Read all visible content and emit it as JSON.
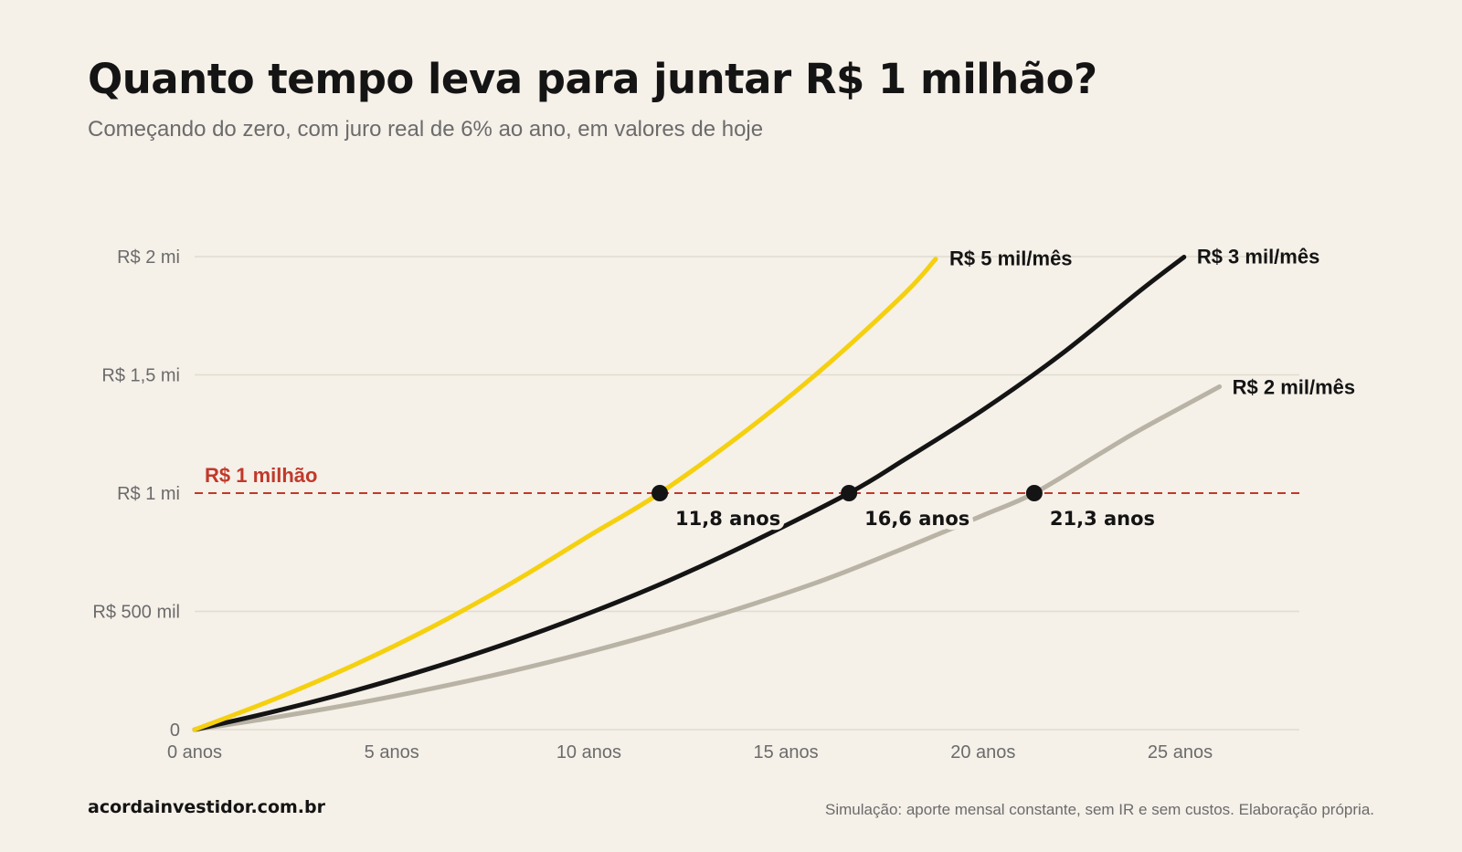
{
  "header": {
    "title": "Quanto tempo leva para juntar R$ 1 milhão?",
    "subtitle": "Começando do zero, com juro real de 6% ao ano, em valores de hoje"
  },
  "footer": {
    "source": "acordainvestidor.com.br",
    "note": "Simulação: aporte mensal constante, sem IR e sem custos. Elaboração própria."
  },
  "colors": {
    "background": "#f5f0e8",
    "grid": "#e2dccf",
    "reference_line": "#c0392b"
  },
  "chart_data": {
    "type": "line",
    "title": "Quanto tempo leva para juntar R$ 1 milhão?",
    "subtitle": "Começando do zero, com juro real de 6% ao ano, em valores de hoje",
    "xlabel": "",
    "ylabel": "",
    "xlim": [
      0,
      28
    ],
    "ylim": [
      0,
      2000000
    ],
    "grid": true,
    "x_ticks": [
      {
        "value": 0,
        "label": "0 anos"
      },
      {
        "value": 5,
        "label": "5 anos"
      },
      {
        "value": 10,
        "label": "10 anos"
      },
      {
        "value": 15,
        "label": "15 anos"
      },
      {
        "value": 20,
        "label": "20 anos"
      },
      {
        "value": 25,
        "label": "25 anos"
      }
    ],
    "y_ticks": [
      {
        "value": 0,
        "label": "0"
      },
      {
        "value": 500000,
        "label": "R$ 500 mil"
      },
      {
        "value": 1000000,
        "label": "R$ 1 mi"
      },
      {
        "value": 1500000,
        "label": "R$ 1,5 mi"
      },
      {
        "value": 2000000,
        "label": "R$ 2 mi"
      }
    ],
    "reference_line": {
      "y": 1000000,
      "label": "R$ 1 milhão",
      "color": "#c0392b"
    },
    "series": [
      {
        "name": "R$ 5 mil/mês",
        "color": "#f5d00f",
        "x": [
          0,
          2,
          4,
          6,
          8,
          10,
          11.8,
          14,
          16,
          18,
          18.8
        ],
        "y": [
          0,
          127000,
          270000,
          432000,
          616000,
          819000,
          1000000,
          1265000,
          1536000,
          1842000,
          1990000
        ],
        "crossing": {
          "x": 11.8,
          "label": "11,8 anos"
        }
      },
      {
        "name": "R$ 3 mil/mês",
        "color": "#141414",
        "x": [
          0,
          2,
          4,
          6,
          8,
          10,
          12,
          14,
          16.6,
          18,
          20,
          22,
          24,
          25.1
        ],
        "y": [
          0,
          76000,
          162000,
          260000,
          369000,
          492000,
          628000,
          782000,
          1000000,
          1141000,
          1352000,
          1589000,
          1858000,
          1998000
        ],
        "crossing": {
          "x": 16.6,
          "label": "16,6 anos"
        }
      },
      {
        "name": "R$ 2 mil/mês",
        "color": "#b8b3a5",
        "x": [
          0,
          2,
          4,
          6,
          8,
          10,
          12,
          14,
          16,
          18,
          20,
          21.3,
          23,
          24,
          26
        ],
        "y": [
          0,
          51000,
          108000,
          173000,
          246000,
          328000,
          420000,
          522000,
          635000,
          767000,
          906000,
          1000000,
          1170000,
          1269000,
          1450000
        ],
        "crossing": {
          "x": 21.3,
          "label": "21,3 anos"
        }
      }
    ]
  }
}
